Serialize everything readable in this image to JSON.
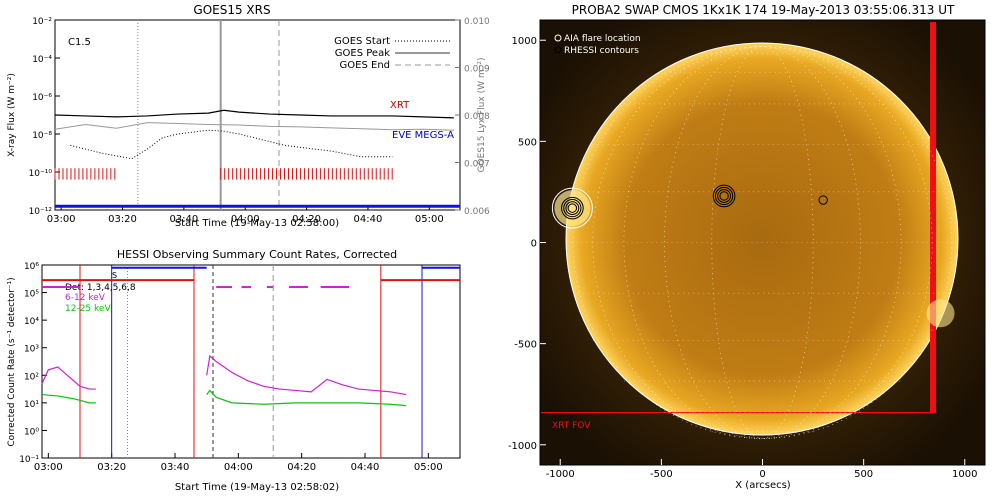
{
  "chart_data": [
    {
      "type": "line",
      "title": "GOES15 XRS",
      "xlabel": "Start Time (19-May-13 02:58:00)",
      "ylabel": "X-ray Flux (W m⁻²)",
      "ylabel_right": "GOES15 Lyx Flux (W m⁻²)",
      "x_ticks": [
        "03:00",
        "03:20",
        "03:40",
        "04:00",
        "04:20",
        "04:40",
        "05:00"
      ],
      "x_range_minutes": [
        0,
        132
      ],
      "y_ticks_left": [
        "10⁻²",
        "10⁻⁴",
        "10⁻⁶",
        "10⁻⁸",
        "10⁻¹⁰",
        "10⁻¹²"
      ],
      "y_ticks_right": [
        "0.010",
        "0.009",
        "0.008",
        "0.007",
        "0.006"
      ],
      "ylim_log": [
        -12,
        -2
      ],
      "ylim_right": [
        0.006,
        0.01
      ],
      "flare_class": "C1.5",
      "legend": [
        "GOES Start",
        "GOES Peak",
        "GOES End"
      ],
      "annotations": [
        "XRT",
        "EVE MEGS-A"
      ],
      "events_minutes": {
        "start": 27,
        "peak": 54,
        "end": 73
      },
      "series": [
        {
          "name": "XRT",
          "x": [
            0,
            10,
            20,
            30,
            40,
            50,
            55,
            60,
            70,
            80,
            90,
            100,
            110,
            120,
            130
          ],
          "y": [
            -7.0,
            -7.05,
            -7.1,
            -7.05,
            -6.95,
            -6.9,
            -6.75,
            -6.85,
            -6.95,
            -7.0,
            -7.05,
            -7.05,
            -7.05,
            -7.1,
            -7.15
          ]
        },
        {
          "name": "EVE MEGS-A",
          "x": [
            0,
            10,
            20,
            30,
            40,
            50,
            60,
            70,
            80,
            90,
            100,
            110,
            120,
            130
          ],
          "y": [
            0.0077,
            0.0078,
            0.00772,
            0.00784,
            0.00782,
            0.0078,
            0.00779,
            0.00776,
            0.00775,
            0.00773,
            0.00771,
            0.00769,
            0.0077,
            0.00768
          ]
        },
        {
          "name": "",
          "x": [
            5,
            15,
            25,
            30,
            35,
            40,
            45,
            50,
            55,
            60,
            65,
            70,
            75,
            80,
            90,
            100,
            110
          ],
          "y": [
            -8.6,
            -9.0,
            -9.3,
            -8.8,
            -8.2,
            -8.0,
            -7.9,
            -7.8,
            -7.85,
            -8.0,
            -8.2,
            -8.4,
            -8.6,
            -8.7,
            -8.9,
            -9.2,
            -9.2
          ]
        }
      ],
      "xrt_coverage_minutes": [
        [
          0,
          20
        ],
        [
          54,
          111
        ]
      ]
    },
    {
      "type": "line",
      "title": "HESSI Observing Summary Count Rates, Corrected",
      "xlabel": "Start Time (19-May-13 02:58:02)",
      "ylabel": "Corrected Count Rate (s⁻¹ detector⁻¹)",
      "x_ticks": [
        "03:00",
        "03:20",
        "03:40",
        "04:00",
        "04:20",
        "04:40",
        "05:00"
      ],
      "x_range_minutes": [
        0,
        132
      ],
      "y_ticks": [
        "10⁶",
        "10⁵",
        "10⁴",
        "10³",
        "10²",
        "10¹",
        "10⁰",
        "10⁻¹"
      ],
      "ylim_log": [
        -1,
        6
      ],
      "legend": [
        "Det: 1,3,4,5,6,8",
        "6-12 keV",
        "12-25 keV"
      ],
      "annotations": [
        "S"
      ],
      "series": [
        {
          "name": "6-12 keV",
          "x": [
            0,
            2,
            5,
            8,
            12,
            15,
            17,
            52,
            53,
            55,
            60,
            65,
            70,
            75,
            80,
            85,
            90,
            95,
            100,
            105,
            110,
            115
          ],
          "y": [
            1.7,
            2.2,
            2.3,
            2.0,
            1.6,
            1.5,
            1.5,
            2.0,
            2.7,
            2.5,
            2.1,
            1.8,
            1.6,
            1.5,
            1.45,
            1.4,
            1.85,
            1.65,
            1.5,
            1.45,
            1.4,
            1.3
          ]
        },
        {
          "name": "12-25 keV",
          "x": [
            0,
            5,
            10,
            15,
            17,
            52,
            53,
            55,
            60,
            70,
            80,
            90,
            100,
            110,
            115
          ],
          "y": [
            1.3,
            1.25,
            1.15,
            1.0,
            1.0,
            1.3,
            1.45,
            1.2,
            1.0,
            0.95,
            1.0,
            1.0,
            1.0,
            0.95,
            0.9
          ]
        }
      ],
      "night_boundaries_minutes": [
        12,
        48,
        107
      ],
      "saa_boundaries_minutes": [
        22,
        120
      ]
    },
    {
      "type": "scatter",
      "title": "PROBA2 SWAP CMOS 1Kx1K 174 19-May-2013 03:55:06.313 UT",
      "xlabel": "X (arcsecs)",
      "ylabel": "",
      "x_ticks": [
        "-1000",
        "-500",
        "0",
        "500",
        "1000"
      ],
      "y_ticks": [
        "1000",
        "500",
        "0",
        "-500",
        "-1000"
      ],
      "xlim": [
        -1100,
        1100
      ],
      "ylim": [
        -1100,
        1100
      ],
      "legend": [
        "AIA flare location",
        "RHESSI contours"
      ],
      "annotations": [
        "XRT FOV"
      ],
      "points": [
        {
          "name": "AIA flare location",
          "x": -940,
          "y": 170
        },
        {
          "name": "RHESSI contour 1",
          "x": -940,
          "y": 170
        },
        {
          "name": "RHESSI contour 2",
          "x": -190,
          "y": 230
        },
        {
          "name": "RHESSI contour 3",
          "x": 300,
          "y": 210
        }
      ]
    }
  ]
}
